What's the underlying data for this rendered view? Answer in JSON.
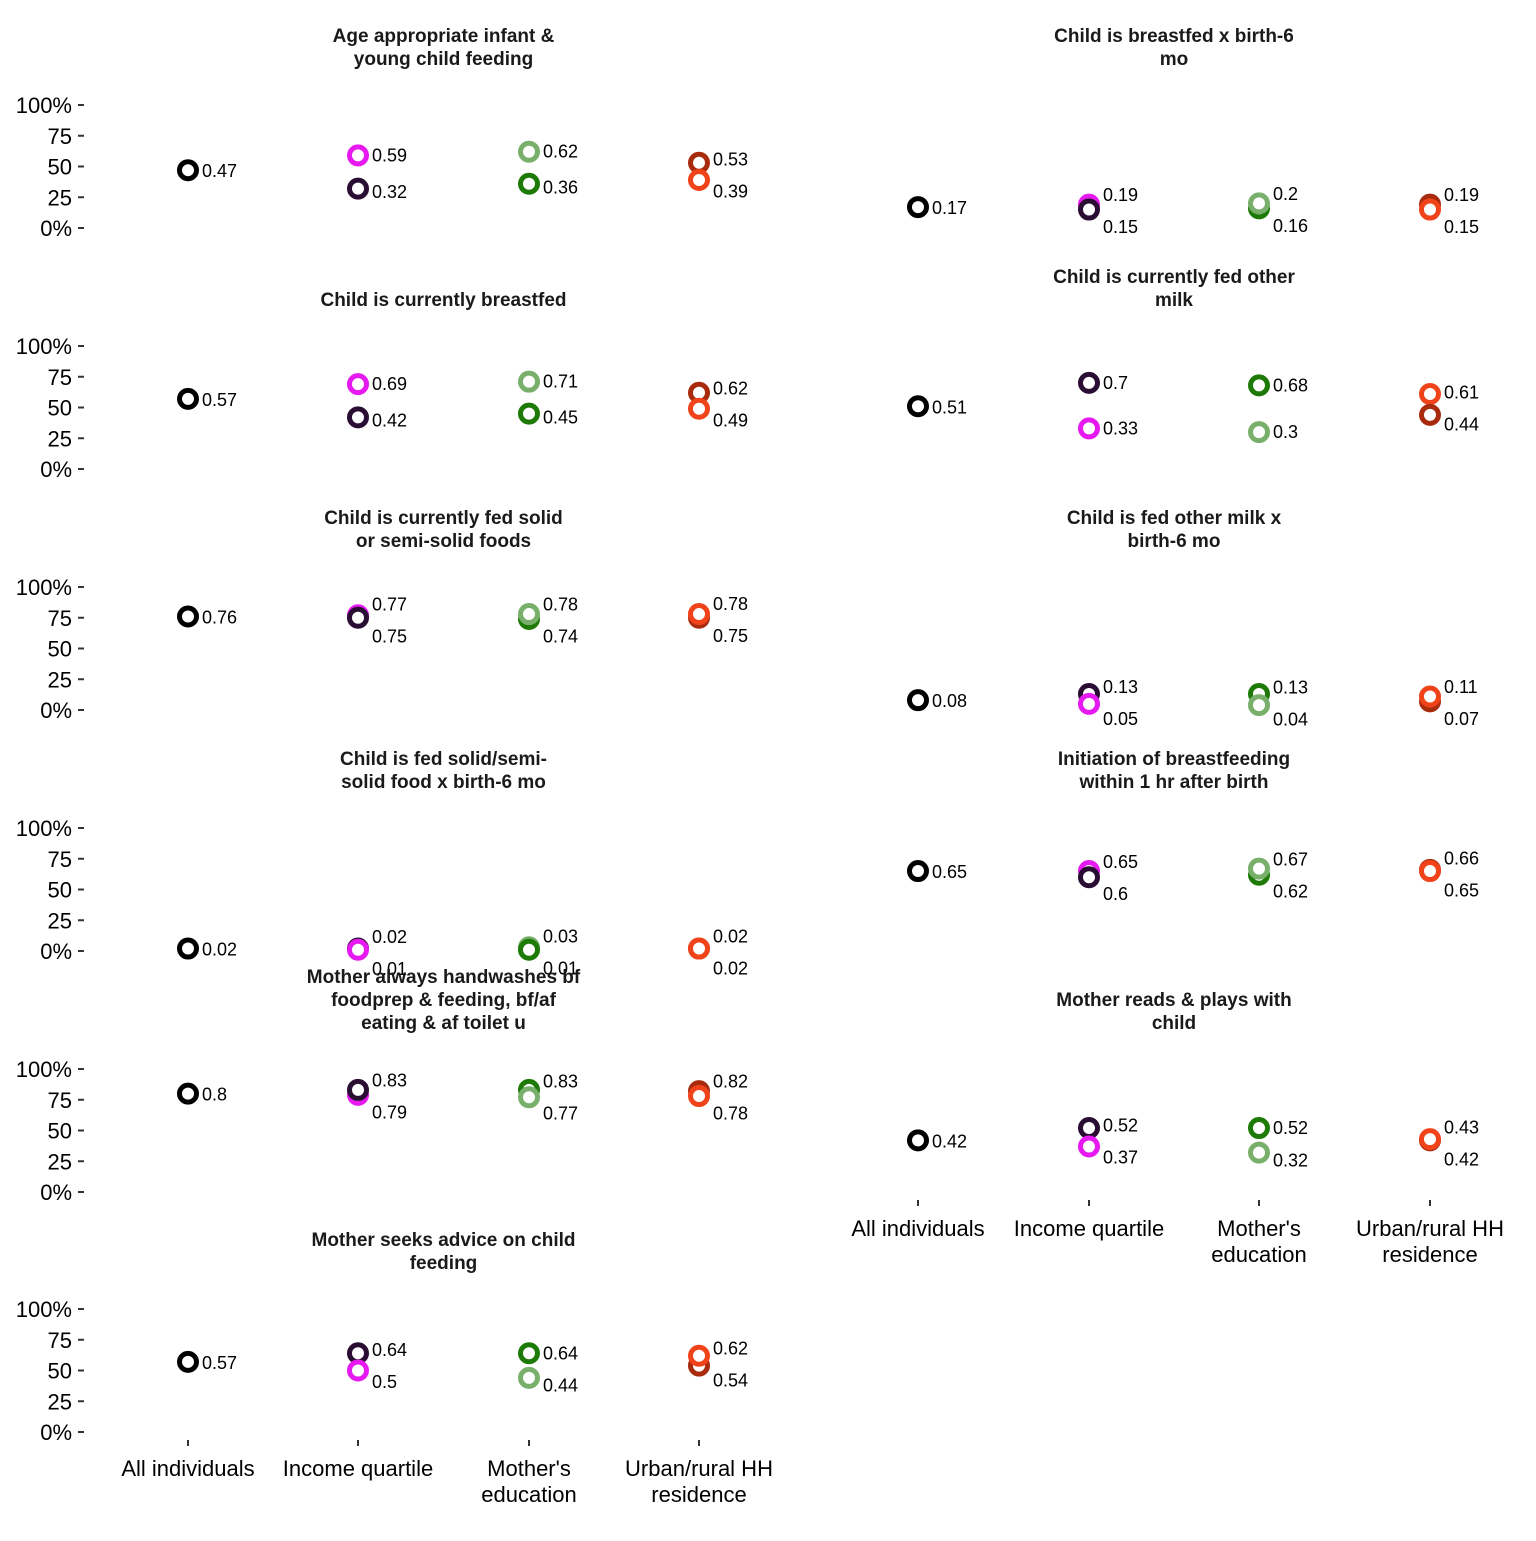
{
  "colors": {
    "all": "#000000",
    "income_low": "#2a0d33",
    "income_high": "#e619f0",
    "edu_low": "#1d7a07",
    "edu_high": "#78b06b",
    "residence_rural": "#a82b0e",
    "residence_urban": "#f0431a"
  },
  "chart_data": {
    "type": "scatter",
    "categories": [
      "All individuals",
      "Income quartile",
      "Mother's education",
      "Urban/rural HH residence"
    ],
    "y_ticks": [
      "100%",
      "75",
      "50",
      "25",
      "0%"
    ],
    "ylim": [
      0,
      1
    ],
    "grid": false,
    "legend": "none",
    "panels": [
      {
        "title": "Age appropriate infant & young child feeding",
        "title_lines": [
          "Age appropriate infant &",
          "young child feeding"
        ],
        "points": [
          {
            "category": 0,
            "value": 0.47,
            "label": "0.47",
            "color": "all"
          },
          {
            "category": 1,
            "value": 0.59,
            "label": "0.59",
            "color": "income_high"
          },
          {
            "category": 1,
            "value": 0.32,
            "label": "0.32",
            "color": "income_low"
          },
          {
            "category": 2,
            "value": 0.62,
            "label": "0.62",
            "color": "edu_high"
          },
          {
            "category": 2,
            "value": 0.36,
            "label": "0.36",
            "color": "edu_low"
          },
          {
            "category": 3,
            "value": 0.53,
            "label": "0.53",
            "color": "residence_rural"
          },
          {
            "category": 3,
            "value": 0.39,
            "label": "0.39",
            "color": "residence_urban"
          }
        ]
      },
      {
        "title": "Child is breastfed x birth-6 mo",
        "title_lines": [
          "Child is breastfed x birth-6",
          "mo"
        ],
        "points": [
          {
            "category": 0,
            "value": 0.17,
            "label": "0.17",
            "color": "all"
          },
          {
            "category": 1,
            "value": 0.19,
            "label": "0.19",
            "color": "income_high"
          },
          {
            "category": 1,
            "value": 0.15,
            "label": "0.15",
            "color": "income_low"
          },
          {
            "category": 2,
            "value": 0.16,
            "label": "0.16",
            "color": "edu_low"
          },
          {
            "category": 2,
            "value": 0.2,
            "label": "0.2",
            "color": "edu_high"
          },
          {
            "category": 3,
            "value": 0.19,
            "label": "0.19",
            "color": "residence_rural"
          },
          {
            "category": 3,
            "value": 0.15,
            "label": "0.15",
            "color": "residence_urban"
          }
        ]
      },
      {
        "title": "Child is currently breastfed",
        "title_lines": [
          "Child is currently breastfed"
        ],
        "points": [
          {
            "category": 0,
            "value": 0.57,
            "label": "0.57",
            "color": "all"
          },
          {
            "category": 1,
            "value": 0.69,
            "label": "0.69",
            "color": "income_high"
          },
          {
            "category": 1,
            "value": 0.42,
            "label": "0.42",
            "color": "income_low"
          },
          {
            "category": 2,
            "value": 0.71,
            "label": "0.71",
            "color": "edu_high"
          },
          {
            "category": 2,
            "value": 0.45,
            "label": "0.45",
            "color": "edu_low"
          },
          {
            "category": 3,
            "value": 0.62,
            "label": "0.62",
            "color": "residence_rural"
          },
          {
            "category": 3,
            "value": 0.49,
            "label": "0.49",
            "color": "residence_urban"
          }
        ]
      },
      {
        "title": "Child is currently fed other milk",
        "title_lines": [
          "Child is currently fed other",
          "milk"
        ],
        "points": [
          {
            "category": 0,
            "value": 0.51,
            "label": "0.51",
            "color": "all"
          },
          {
            "category": 1,
            "value": 0.7,
            "label": "0.7",
            "color": "income_low"
          },
          {
            "category": 1,
            "value": 0.33,
            "label": "0.33",
            "color": "income_high"
          },
          {
            "category": 2,
            "value": 0.68,
            "label": "0.68",
            "color": "edu_low"
          },
          {
            "category": 2,
            "value": 0.3,
            "label": "0.3",
            "color": "edu_high"
          },
          {
            "category": 3,
            "value": 0.61,
            "label": "0.61",
            "color": "residence_urban"
          },
          {
            "category": 3,
            "value": 0.44,
            "label": "0.44",
            "color": "residence_rural"
          }
        ]
      },
      {
        "title": "Child is currently fed solid or semi-solid foods",
        "title_lines": [
          "Child is currently fed solid",
          "or semi-solid foods"
        ],
        "points": [
          {
            "category": 0,
            "value": 0.76,
            "label": "0.76",
            "color": "all"
          },
          {
            "category": 1,
            "value": 0.77,
            "label": "0.77",
            "color": "income_high"
          },
          {
            "category": 1,
            "value": 0.75,
            "label": "0.75",
            "color": "income_low"
          },
          {
            "category": 2,
            "value": 0.74,
            "label": "0.74",
            "color": "edu_low"
          },
          {
            "category": 2,
            "value": 0.78,
            "label": "0.78",
            "color": "edu_high"
          },
          {
            "category": 3,
            "value": 0.75,
            "label": "0.75",
            "color": "residence_rural"
          },
          {
            "category": 3,
            "value": 0.78,
            "label": "0.78",
            "color": "residence_urban"
          }
        ]
      },
      {
        "title": "Child is fed other milk x birth-6 mo",
        "title_lines": [
          "Child is fed other milk x",
          "birth-6 mo"
        ],
        "points": [
          {
            "category": 0,
            "value": 0.08,
            "label": "0.08",
            "color": "all"
          },
          {
            "category": 1,
            "value": 0.13,
            "label": "0.13",
            "color": "income_low"
          },
          {
            "category": 1,
            "value": 0.05,
            "label": "0.05",
            "color": "income_high"
          },
          {
            "category": 2,
            "value": 0.13,
            "label": "0.13",
            "color": "edu_low"
          },
          {
            "category": 2,
            "value": 0.04,
            "label": "0.04",
            "color": "edu_high"
          },
          {
            "category": 3,
            "value": 0.07,
            "label": "0.07",
            "color": "residence_rural"
          },
          {
            "category": 3,
            "value": 0.11,
            "label": "0.11",
            "color": "residence_urban"
          }
        ]
      },
      {
        "title": "Child is fed solid/semi-solid food x birth-6 mo",
        "title_lines": [
          "Child is fed solid/semi-",
          "solid food x birth-6 mo"
        ],
        "points": [
          {
            "category": 0,
            "value": 0.02,
            "label": "0.02",
            "color": "all"
          },
          {
            "category": 1,
            "value": 0.02,
            "label": "0.02",
            "color": "income_low"
          },
          {
            "category": 1,
            "value": 0.01,
            "label": "0.01",
            "color": "income_high"
          },
          {
            "category": 2,
            "value": 0.03,
            "label": "0.03",
            "color": "edu_high"
          },
          {
            "category": 2,
            "value": 0.01,
            "label": "0.01",
            "color": "edu_low"
          },
          {
            "category": 3,
            "value": 0.02,
            "label": "0.02",
            "color": "residence_rural"
          },
          {
            "category": 3,
            "value": 0.02,
            "label": "0.02",
            "color": "residence_urban"
          }
        ]
      },
      {
        "title": "Initiation of breastfeeding within 1 hr after birth",
        "title_lines": [
          "Initiation of breastfeeding",
          "within 1 hr after birth"
        ],
        "points": [
          {
            "category": 0,
            "value": 0.65,
            "label": "0.65",
            "color": "all"
          },
          {
            "category": 1,
            "value": 0.65,
            "label": "0.65",
            "color": "income_high"
          },
          {
            "category": 1,
            "value": 0.6,
            "label": "0.6",
            "color": "income_low"
          },
          {
            "category": 2,
            "value": 0.62,
            "label": "0.62",
            "color": "edu_low"
          },
          {
            "category": 2,
            "value": 0.67,
            "label": "0.67",
            "color": "edu_high"
          },
          {
            "category": 3,
            "value": 0.66,
            "label": "0.66",
            "color": "residence_rural"
          },
          {
            "category": 3,
            "value": 0.65,
            "label": "0.65",
            "color": "residence_urban"
          }
        ]
      },
      {
        "title": "Mother always handwashes bf foodprep & feeding, bf/af eating & af toilet u",
        "title_lines": [
          "Mother always handwashes bf",
          "foodprep & feeding, bf/af",
          "eating & af toilet u"
        ],
        "points": [
          {
            "category": 0,
            "value": 0.8,
            "label": "0.8",
            "color": "all"
          },
          {
            "category": 1,
            "value": 0.79,
            "label": "0.79",
            "color": "income_high"
          },
          {
            "category": 1,
            "value": 0.83,
            "label": "0.83",
            "color": "income_low"
          },
          {
            "category": 2,
            "value": 0.83,
            "label": "0.83",
            "color": "edu_low"
          },
          {
            "category": 2,
            "value": 0.77,
            "label": "0.77",
            "color": "edu_high"
          },
          {
            "category": 3,
            "value": 0.82,
            "label": "0.82",
            "color": "residence_rural"
          },
          {
            "category": 3,
            "value": 0.78,
            "label": "0.78",
            "color": "residence_urban"
          }
        ]
      },
      {
        "title": "Mother reads & plays with child",
        "title_lines": [
          "Mother reads & plays with",
          "child"
        ],
        "points": [
          {
            "category": 0,
            "value": 0.42,
            "label": "0.42",
            "color": "all"
          },
          {
            "category": 1,
            "value": 0.52,
            "label": "0.52",
            "color": "income_low"
          },
          {
            "category": 1,
            "value": 0.37,
            "label": "0.37",
            "color": "income_high"
          },
          {
            "category": 2,
            "value": 0.52,
            "label": "0.52",
            "color": "edu_low"
          },
          {
            "category": 2,
            "value": 0.32,
            "label": "0.32",
            "color": "edu_high"
          },
          {
            "category": 3,
            "value": 0.42,
            "label": "0.42",
            "color": "residence_rural"
          },
          {
            "category": 3,
            "value": 0.43,
            "label": "0.43",
            "color": "residence_urban"
          }
        ]
      },
      {
        "title": "Mother seeks advice on child feeding",
        "title_lines": [
          "Mother seeks advice on child",
          "feeding"
        ],
        "points": [
          {
            "category": 0,
            "value": 0.57,
            "label": "0.57",
            "color": "all"
          },
          {
            "category": 1,
            "value": 0.64,
            "label": "0.64",
            "color": "income_low"
          },
          {
            "category": 1,
            "value": 0.5,
            "label": "0.5",
            "color": "income_high"
          },
          {
            "category": 2,
            "value": 0.64,
            "label": "0.64",
            "color": "edu_low"
          },
          {
            "category": 2,
            "value": 0.44,
            "label": "0.44",
            "color": "edu_high"
          },
          {
            "category": 3,
            "value": 0.54,
            "label": "0.54",
            "color": "residence_rural"
          },
          {
            "category": 3,
            "value": 0.62,
            "label": "0.62",
            "color": "residence_urban"
          }
        ]
      }
    ]
  }
}
